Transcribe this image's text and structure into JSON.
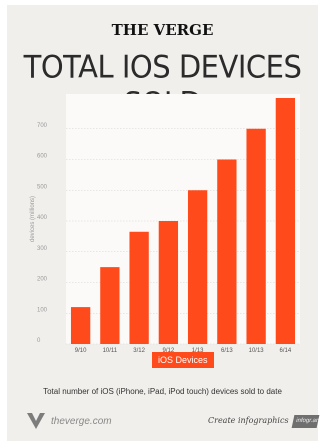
{
  "header": {
    "brand": "THE VERGE",
    "title": "TOTAL IOS DEVICES SOLD"
  },
  "chart_data": {
    "type": "bar",
    "categories": [
      "9/10",
      "10/11",
      "3/12",
      "9/12",
      "1/13",
      "6/13",
      "10/13",
      "6/14"
    ],
    "series": [
      {
        "name": "iOS Devices",
        "values": [
          120,
          250,
          365,
          400,
          500,
          600,
          700,
          800
        ]
      }
    ],
    "ylabel": "devices (millions)",
    "xlabel": "",
    "ylim": [
      0,
      800
    ],
    "yticks": [
      0,
      100,
      200,
      300,
      400,
      500,
      600,
      700
    ],
    "grid": true,
    "legend": "bottom",
    "bar_color": "#ff4a1c"
  },
  "caption": "Total number of iOS (iPhone, iPad, iPod touch) devices sold to date",
  "footer": {
    "site": "theverge.com",
    "cta": "Create infographics",
    "badge": "infogr.am"
  }
}
